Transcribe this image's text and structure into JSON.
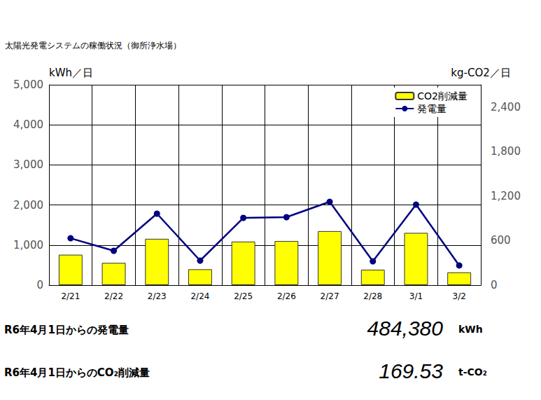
{
  "chart_data": {
    "type": "bar",
    "title": "太陽光発電システムの稼働状況（御所浄水場）",
    "y_label": "kWh／日",
    "y2_label": "kg-CO2／日",
    "categories": [
      "2/21",
      "2/22",
      "2/23",
      "2/24",
      "2/25",
      "2/26",
      "2/27",
      "2/28",
      "3/1",
      "3/2"
    ],
    "series": [
      {
        "name": "CO2削減量",
        "type": "bar",
        "axis": "y2",
        "color": "#ffff00",
        "values": [
          410,
          300,
          624,
          214,
          587,
          594,
          728,
          208,
          704,
          172
        ]
      },
      {
        "name": "発電量",
        "type": "line",
        "axis": "y",
        "color": "#000080",
        "marker": "circle",
        "values": [
          1170,
          857,
          1783,
          612,
          1678,
          1696,
          2080,
          594,
          2010,
          490
        ]
      }
    ],
    "ylim": [
      0,
      5000
    ],
    "yticks": [
      0,
      {
        "value": 1000,
        "label": "1,000"
      },
      {
        "value": 2000,
        "label": "2,000"
      },
      {
        "value": 3000,
        "label": "3,000"
      },
      {
        "value": 4000,
        "label": "4,000"
      },
      {
        "value": 5000,
        "label": "5,000"
      }
    ],
    "y2lim": [
      0,
      2700
    ],
    "y2ticks": [
      0,
      600,
      {
        "value": 1200,
        "label": "1,200"
      },
      {
        "value": 1800,
        "label": "1,800"
      },
      {
        "value": 2400,
        "label": "2,400"
      }
    ],
    "grid": true,
    "legend": "upper right"
  },
  "summary": [
    {
      "label": "R6年4月1日からの発電量",
      "value": "484,380",
      "unit": "kWh"
    },
    {
      "label": "R6年4月1日からのCO₂削減量",
      "value": "169.53",
      "unit": "t-CO₂"
    }
  ]
}
